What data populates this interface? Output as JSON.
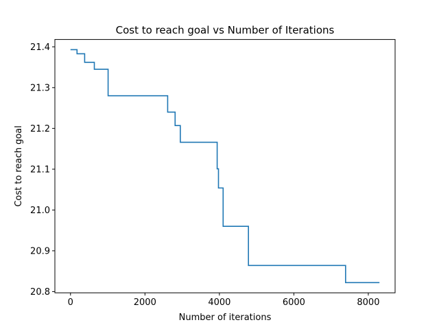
{
  "chart_data": {
    "type": "line",
    "step": "post",
    "title": "Cost to reach goal vs Number of Iterations",
    "xlabel": "Number of iterations",
    "ylabel": "Cost to reach goal",
    "xlim": [
      -420,
      8720
    ],
    "ylim": [
      20.797,
      21.418
    ],
    "xticks": [
      0,
      2000,
      4000,
      6000,
      8000
    ],
    "xtick_labels": [
      "0",
      "2000",
      "4000",
      "6000",
      "8000"
    ],
    "yticks": [
      20.8,
      20.9,
      21.0,
      21.1,
      21.2,
      21.3,
      21.4
    ],
    "ytick_labels": [
      "20.8",
      "20.9",
      "21.0",
      "21.1",
      "21.2",
      "21.3",
      "21.4"
    ],
    "grid": false,
    "series": [
      {
        "color": "#1f77b4",
        "x": [
          0,
          175,
          380,
          640,
          1010,
          2610,
          2810,
          2950,
          3940,
          3975,
          4100,
          4780,
          7390,
          8300
        ],
        "y": [
          21.393,
          21.383,
          21.362,
          21.345,
          21.28,
          21.24,
          21.207,
          21.166,
          21.101,
          21.054,
          20.96,
          20.864,
          20.822,
          20.822
        ]
      }
    ]
  }
}
